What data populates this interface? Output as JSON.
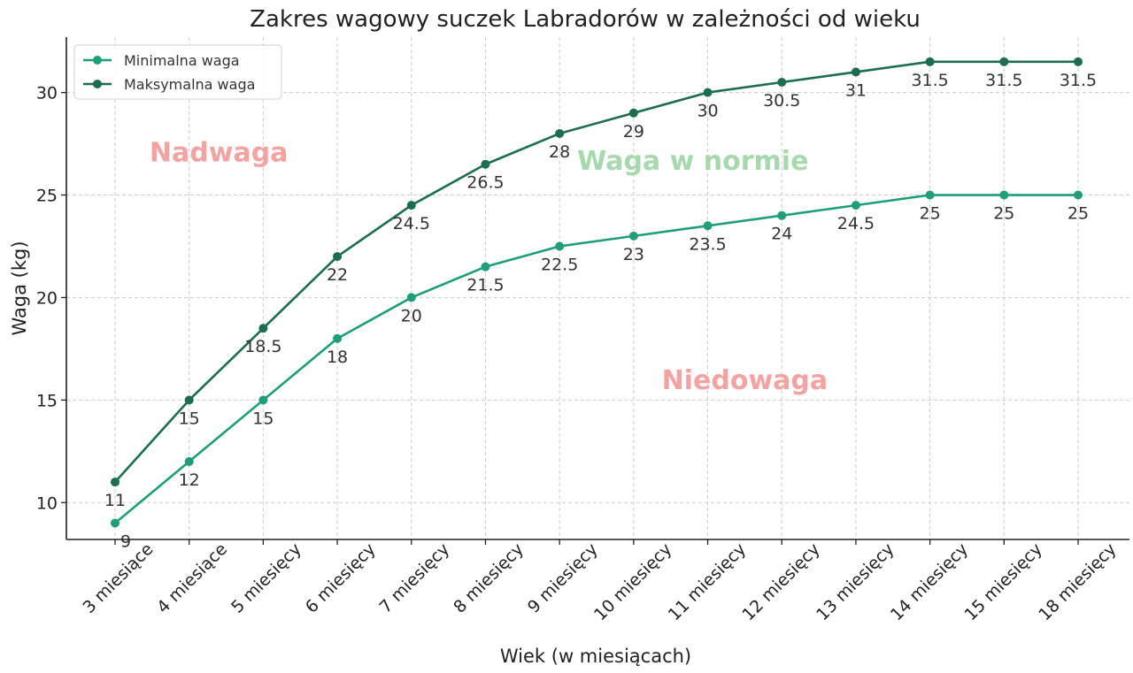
{
  "chart_data": {
    "type": "line",
    "title": "Zakres wagowy suczek Labradorów w zależności od wieku",
    "xlabel": "Wiek (w miesiącach)",
    "ylabel": "Waga (kg)",
    "categories": [
      "3 miesiące",
      "4 miesiące",
      "5 miesięcy",
      "6 miesięcy",
      "7 miesięcy",
      "8 miesięcy",
      "9 miesięcy",
      "10 miesięcy",
      "11 miesięcy",
      "12 miesięcy",
      "13 miesięcy",
      "14 miesięcy",
      "15 miesięcy",
      "18 miesięcy"
    ],
    "series": [
      {
        "name": "Minimalna waga",
        "color": "#1f9e79",
        "values": [
          9,
          12,
          15,
          18,
          20,
          21.5,
          22.5,
          23,
          23.5,
          24,
          24.5,
          25,
          25,
          25
        ]
      },
      {
        "name": "Maksymalna waga",
        "color": "#1c6e4f",
        "values": [
          11,
          15,
          18.5,
          22,
          24.5,
          26.5,
          28,
          29,
          30,
          30.5,
          31,
          31.5,
          31.5,
          31.5
        ]
      }
    ],
    "ylim": [
      8.2,
      32.7
    ],
    "yticks": [
      10,
      15,
      20,
      25,
      30
    ],
    "grid": true,
    "legend": "top-left",
    "annotations": [
      {
        "text": "Nadwaga",
        "x": 1.4,
        "y": 27,
        "color": "#f4a3a3"
      },
      {
        "text": "Waga w normie",
        "x": 7.8,
        "y": 26.6,
        "color": "#a8d8ad"
      },
      {
        "text": "Niedowaga",
        "x": 8.5,
        "y": 15.9,
        "color": "#f4a3a3"
      }
    ]
  }
}
